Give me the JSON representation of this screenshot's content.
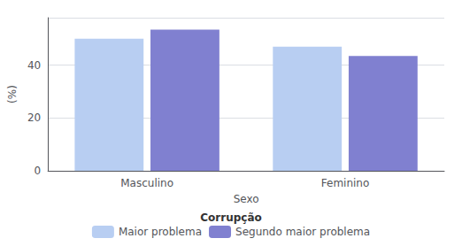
{
  "chart_data": {
    "type": "bar",
    "categories": [
      "Masculino",
      "Feminino"
    ],
    "series": [
      {
        "name": "Maior problema",
        "color": "#b8cef2",
        "values": [
          50.0,
          47.0
        ]
      },
      {
        "name": "Segundo maior problema",
        "color": "#8080d0",
        "values": [
          53.5,
          43.5
        ]
      }
    ],
    "xlabel": "Sexo",
    "ylabel": "(%)",
    "ylim": [
      0,
      58
    ],
    "yticks": [
      0,
      20,
      40
    ],
    "grid": true,
    "legend": "bottom",
    "legend_title": "Corrupção"
  }
}
